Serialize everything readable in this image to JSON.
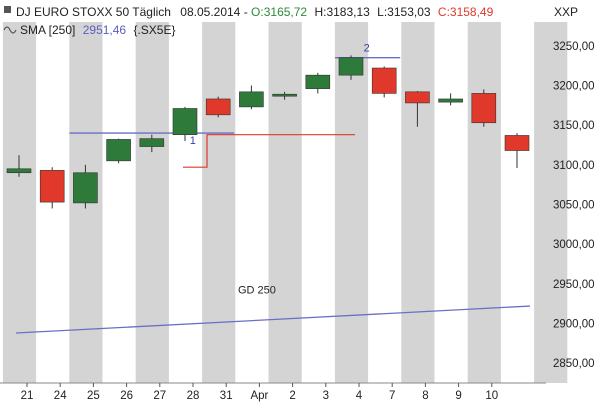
{
  "header": {
    "symbol_label": "DJ EURO STOXX 50 Täglich",
    "date": "08.05.2014",
    "open": "O:3165,72",
    "high": "H:3183,13",
    "low": "L:3153,03",
    "close": "C:3158,49",
    "sma_label": "SMA [250]",
    "sma_value": "2951,46",
    "sma_symbol": "{.SX5E}",
    "exchange": "XXP"
  },
  "colors": {
    "up": "#2d7a3a",
    "down": "#e0392b",
    "stripe": "#d4d4d4",
    "sma": "#6a6fc6",
    "support": "#6a6fc6",
    "red_line": "#e0392b"
  },
  "chart_data": {
    "type": "candlestick",
    "title": "DJ EURO STOXX 50 Täglich",
    "ylim": [
      2825,
      3280
    ],
    "y_ticks": [
      "3250,00",
      "3200,00",
      "3150,00",
      "3100,00",
      "3050,00",
      "3000,00",
      "2950,00",
      "2900,00",
      "2850,00"
    ],
    "y_tick_values": [
      3250,
      3200,
      3150,
      3100,
      3050,
      3000,
      2950,
      2900,
      2850
    ],
    "x_labels": [
      "21",
      "24",
      "25",
      "26",
      "27",
      "28",
      "31",
      "Apr",
      "2",
      "3",
      "4",
      "7",
      "8",
      "9",
      "10"
    ],
    "candles": [
      {
        "open": 3090,
        "close": 3095,
        "high": 3112,
        "low": 3085
      },
      {
        "open": 3093,
        "close": 3053,
        "high": 3097,
        "low": 3045
      },
      {
        "open": 3052,
        "close": 3090,
        "high": 3100,
        "low": 3045
      },
      {
        "open": 3105,
        "close": 3132,
        "high": 3133,
        "low": 3102
      },
      {
        "open": 3123,
        "close": 3133,
        "high": 3138,
        "low": 3116
      },
      {
        "open": 3138,
        "close": 3171,
        "high": 3173,
        "low": 3130
      },
      {
        "open": 3183,
        "close": 3163,
        "high": 3186,
        "low": 3160
      },
      {
        "open": 3173,
        "close": 3192,
        "high": 3200,
        "low": 3170
      },
      {
        "open": 3187,
        "close": 3189,
        "high": 3192,
        "low": 3182
      },
      {
        "open": 3196,
        "close": 3213,
        "high": 3216,
        "low": 3190
      },
      {
        "open": 3213,
        "close": 3235,
        "high": 3238,
        "low": 3207
      },
      {
        "open": 3222,
        "close": 3190,
        "high": 3224,
        "low": 3185
      },
      {
        "open": 3192,
        "close": 3178,
        "high": 3193,
        "low": 3148
      },
      {
        "open": 3179,
        "close": 3183,
        "high": 3190,
        "low": 3175
      },
      {
        "open": 3190,
        "close": 3153,
        "high": 3195,
        "low": 3148
      },
      {
        "open": 3137,
        "close": 3118,
        "high": 3140,
        "low": 3096
      }
    ],
    "sma_250": {
      "label": "GD 250",
      "start": 2888,
      "end": 2922
    },
    "annotations": [
      {
        "label": "1",
        "kind": "support-line",
        "y": 3140,
        "from_candle": 2,
        "to_candle": 6
      },
      {
        "label": "2",
        "kind": "resistance-line",
        "y": 3235,
        "from_candle": 10,
        "to_candle": 11
      }
    ],
    "red_level": {
      "y": 3138,
      "from_candle": 5,
      "to_candle": 10,
      "step_from": 3097
    },
    "grid": "alternating-vertical-stripes"
  }
}
